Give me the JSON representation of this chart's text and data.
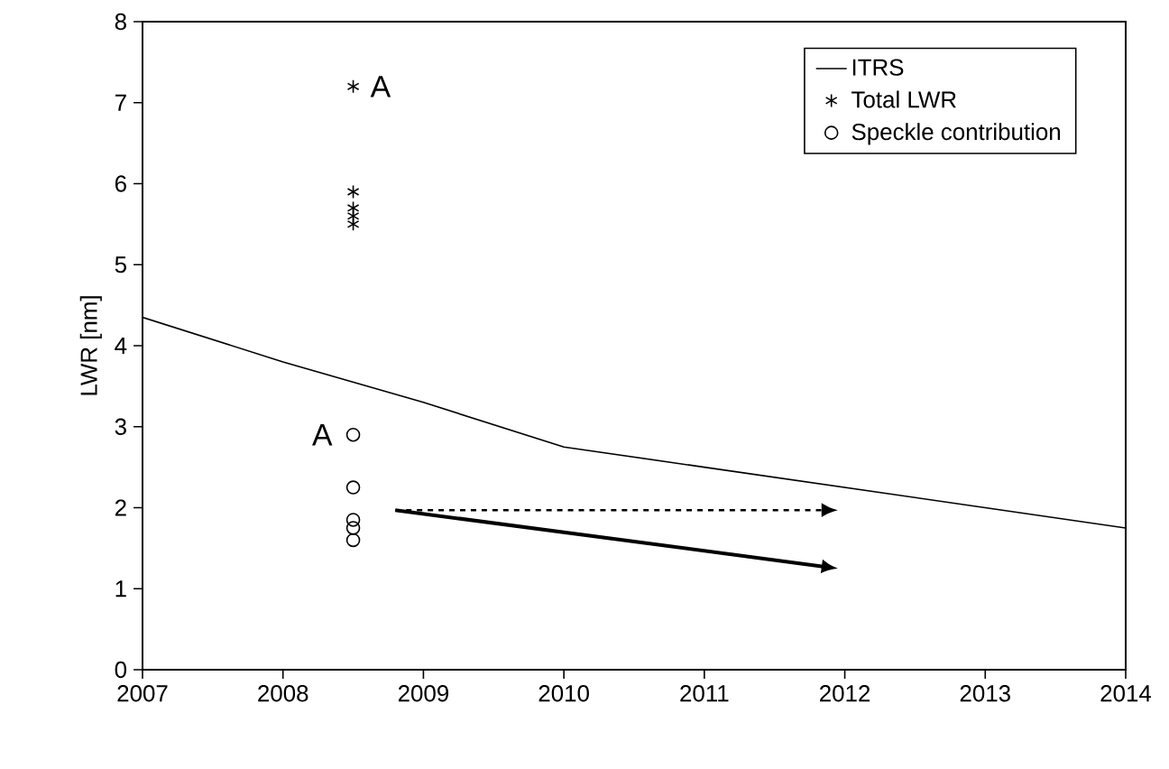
{
  "chart_data": {
    "type": "line",
    "ylabel": "LWR [nm]",
    "xlim": [
      2007,
      2014
    ],
    "xticks": [
      2007,
      2008,
      2009,
      2010,
      2011,
      2012,
      2013,
      2014
    ],
    "ylim": [
      0,
      8
    ],
    "yticks": [
      0,
      1,
      2,
      3,
      4,
      5,
      6,
      7,
      8
    ],
    "grid": false,
    "legend": "top right",
    "series": [
      {
        "name": "ITRS",
        "color": "#000000",
        "marker": "none",
        "x": [
          2007,
          2008,
          2009,
          2010,
          2011,
          2012,
          2013,
          2014
        ],
        "values": [
          4.35,
          3.8,
          3.3,
          2.75,
          2.5,
          2.25,
          2.0,
          1.75
        ]
      },
      {
        "name": "Total LWR",
        "type": "scatter",
        "color": "#000000",
        "marker": "cross",
        "x": [
          2008.5,
          2008.5,
          2008.5,
          2008.5,
          2008.5
        ],
        "values": [
          7.2,
          5.9,
          5.7,
          5.6,
          5.5
        ]
      },
      {
        "name": "Speckle contribution",
        "type": "scatter",
        "color": "#000000",
        "marker": "circle",
        "x": [
          2008.5,
          2008.5,
          2008.5,
          2008.5,
          2008.5
        ],
        "values": [
          2.9,
          2.25,
          1.85,
          1.75,
          1.6
        ]
      }
    ],
    "annotations": [
      {
        "text": "A",
        "x": 2008.5,
        "y": 7.2
      },
      {
        "text": "A",
        "x": 2008.5,
        "y": 2.9
      }
    ]
  }
}
